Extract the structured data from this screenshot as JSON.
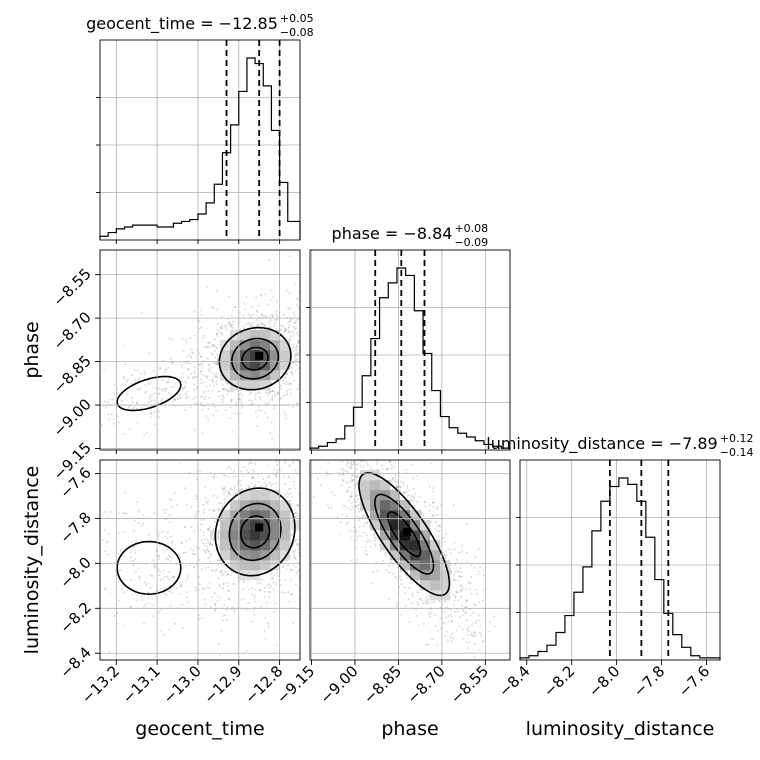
{
  "chart_data": {
    "type": "corner",
    "parameters": [
      "geocent_time",
      "phase",
      "luminosity_distance"
    ],
    "titles": [
      {
        "param": "geocent_time",
        "label": "geocent_time",
        "median": "−12.85",
        "plus": "+0.05",
        "minus": "−0.08"
      },
      {
        "param": "phase",
        "label": "phase",
        "median": "−8.84",
        "plus": "+0.08",
        "minus": "−0.09"
      },
      {
        "param": "luminosity_distance",
        "label": "luminosity_distance",
        "median": "−7.89",
        "plus": "+0.12",
        "minus": "−0.14"
      }
    ],
    "axis_labels": {
      "x": [
        "geocent_time",
        "phase",
        "luminosity_distance"
      ],
      "y": [
        "phase",
        "luminosity_distance"
      ]
    },
    "ranges": {
      "geocent_time": [
        -13.24,
        -12.75
      ],
      "phase": [
        -9.155,
        -8.465
      ],
      "luminosity_distance": [
        -8.43,
        -7.54
      ]
    },
    "ticks": {
      "geocent_time": [
        {
          "v": -13.2,
          "t": "−13.2"
        },
        {
          "v": -13.1,
          "t": "−13.1"
        },
        {
          "v": -13.0,
          "t": "−13.0"
        },
        {
          "v": -12.9,
          "t": "−12.9"
        },
        {
          "v": -12.8,
          "t": "−12.8"
        }
      ],
      "phase": [
        {
          "v": -9.15,
          "t": "−9.15"
        },
        {
          "v": -9.0,
          "t": "−9.00"
        },
        {
          "v": -8.85,
          "t": "−8.85"
        },
        {
          "v": -8.7,
          "t": "−8.70"
        },
        {
          "v": -8.55,
          "t": "−8.55"
        }
      ],
      "luminosity_distance": [
        {
          "v": -8.4,
          "t": "−8.4"
        },
        {
          "v": -8.2,
          "t": "−8.2"
        },
        {
          "v": -8.0,
          "t": "−8.0"
        },
        {
          "v": -7.8,
          "t": "−7.8"
        },
        {
          "v": -7.6,
          "t": "−7.6"
        }
      ]
    },
    "quantiles": {
      "geocent_time": [
        -12.93,
        -12.85,
        -12.8
      ],
      "phase": [
        -8.93,
        -8.84,
        -8.76
      ],
      "luminosity_distance": [
        -8.03,
        -7.89,
        -7.77
      ]
    },
    "histograms": {
      "geocent_time": {
        "edges": [
          -13.24,
          -13.22,
          -13.2,
          -13.18,
          -13.16,
          -13.14,
          -13.12,
          -13.1,
          -13.08,
          -13.06,
          -13.04,
          -13.02,
          -13.0,
          -12.98,
          -12.96,
          -12.94,
          -12.92,
          -12.9,
          -12.88,
          -12.86,
          -12.84,
          -12.82,
          -12.8,
          -12.78,
          -12.76,
          -12.75
        ],
        "counts": [
          0.02,
          0.04,
          0.06,
          0.07,
          0.08,
          0.08,
          0.08,
          0.07,
          0.07,
          0.09,
          0.1,
          0.11,
          0.14,
          0.2,
          0.3,
          0.47,
          0.62,
          0.8,
          0.98,
          0.95,
          0.83,
          0.59,
          0.31,
          0.1,
          0.1
        ]
      },
      "phase": {
        "edges": [
          -9.155,
          -9.125,
          -9.095,
          -9.065,
          -9.035,
          -9.005,
          -8.975,
          -8.945,
          -8.915,
          -8.885,
          -8.855,
          -8.825,
          -8.795,
          -8.765,
          -8.735,
          -8.705,
          -8.675,
          -8.645,
          -8.615,
          -8.585,
          -8.555,
          -8.525,
          -8.495,
          -8.465
        ],
        "counts": [
          0.01,
          0.02,
          0.04,
          0.06,
          0.13,
          0.23,
          0.4,
          0.6,
          0.82,
          0.9,
          0.98,
          0.94,
          0.75,
          0.52,
          0.32,
          0.18,
          0.12,
          0.09,
          0.07,
          0.05,
          0.03,
          0.02,
          0.01
        ]
      },
      "luminosity_distance": {
        "edges": [
          -8.43,
          -8.39,
          -8.35,
          -8.31,
          -8.27,
          -8.23,
          -8.19,
          -8.15,
          -8.11,
          -8.07,
          -8.03,
          -7.99,
          -7.95,
          -7.91,
          -7.87,
          -7.83,
          -7.79,
          -7.75,
          -7.71,
          -7.67,
          -7.63,
          -7.59,
          -7.54
        ],
        "counts": [
          0.01,
          0.02,
          0.04,
          0.07,
          0.13,
          0.21,
          0.32,
          0.44,
          0.61,
          0.75,
          0.82,
          0.86,
          0.83,
          0.75,
          0.58,
          0.38,
          0.22,
          0.12,
          0.06,
          0.02,
          0.01,
          0.01
        ]
      }
    },
    "joint": [
      {
        "x": "geocent_time",
        "y": "phase",
        "mean": [
          -12.86,
          -8.84
        ],
        "sd": [
          0.045,
          0.055
        ],
        "rho": 0.1,
        "mean2": [
          -13.12,
          -8.96
        ],
        "sd2": [
          0.06,
          0.045
        ],
        "rho2": 0.5,
        "w2": 0.15,
        "peak": [
          -12.85,
          -8.83
        ]
      },
      {
        "x": "geocent_time",
        "y": "luminosity_distance",
        "mean": [
          -12.86,
          -7.86
        ],
        "sd": [
          0.05,
          0.1
        ],
        "rho": 0.1,
        "mean2": [
          -13.12,
          -8.02
        ],
        "sd2": [
          0.06,
          0.09
        ],
        "rho2": 0.0,
        "w2": 0.15,
        "peak": [
          -12.85,
          -7.84
        ]
      },
      {
        "x": "phase",
        "y": "luminosity_distance",
        "mean": [
          -8.83,
          -7.87
        ],
        "sd": [
          0.08,
          0.14
        ],
        "rho": -0.8,
        "peak": [
          -8.82,
          -7.86
        ]
      }
    ],
    "grid": true,
    "style": {
      "line": "#000000",
      "grid": "#b0b0b0",
      "scatter": "#808080"
    }
  }
}
